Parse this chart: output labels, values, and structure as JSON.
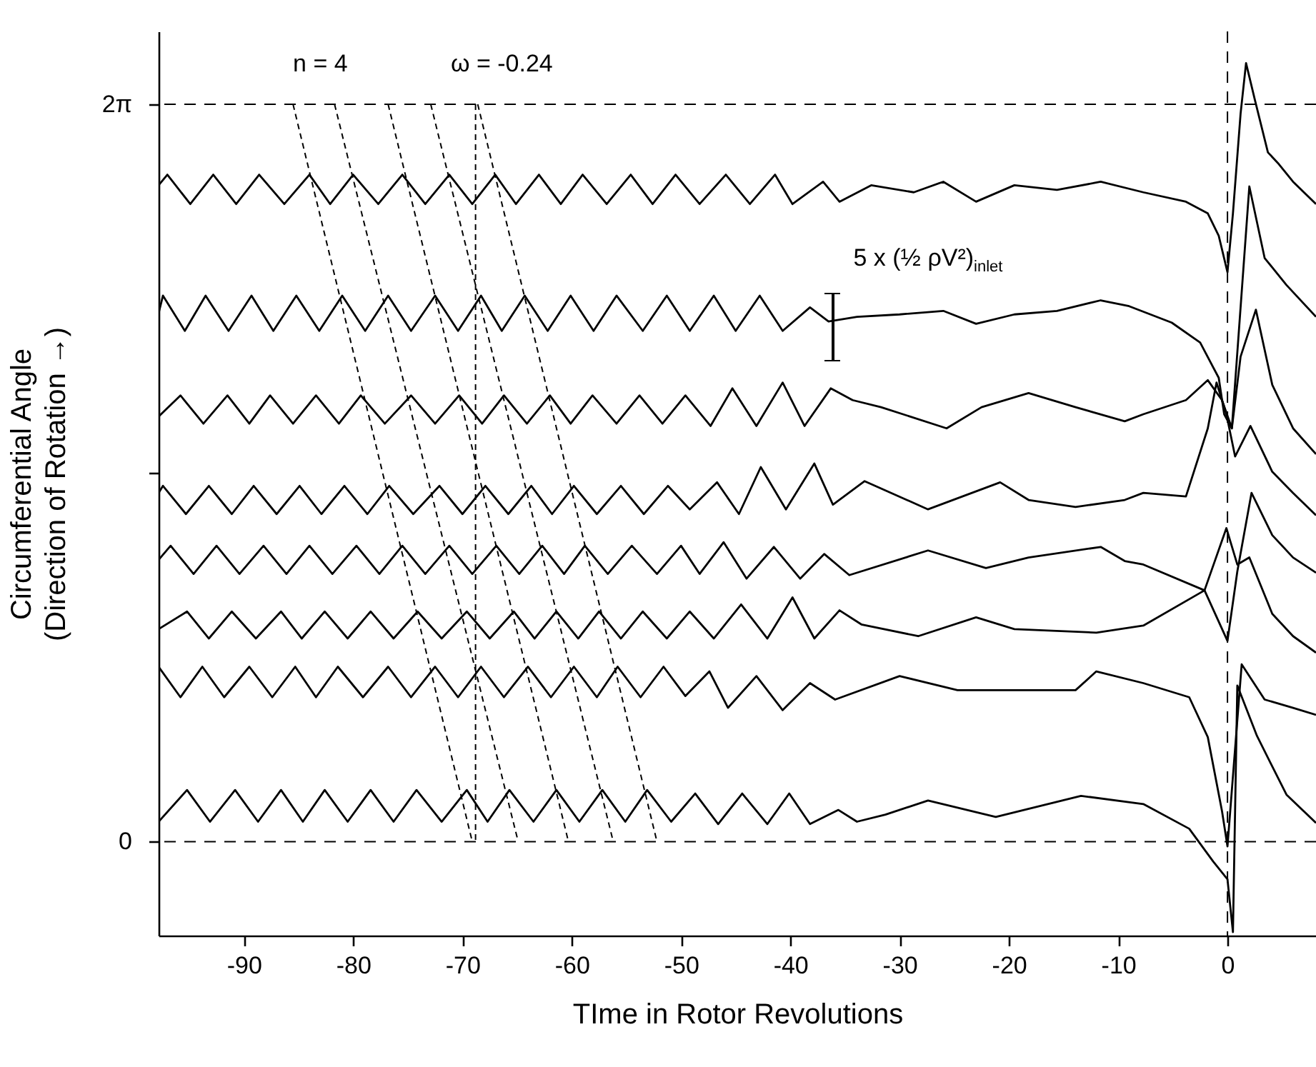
{
  "chart_data": {
    "type": "line",
    "xlabel": "TIme in Rotor Revolutions",
    "ylabel": "Circumferential Angle\n(Direction of Rotation →)",
    "xlim": [
      -97.8,
      8.1
    ],
    "ylim": [
      -0.8,
      6.9
    ],
    "xticks": [
      -90,
      -80,
      -70,
      -60,
      -50,
      -40,
      -30,
      -20,
      -10,
      0
    ],
    "yticks": [
      {
        "value": 0,
        "label": "0"
      },
      {
        "value": 3.1416,
        "label": null
      },
      {
        "value": 6.28,
        "label": "2π"
      }
    ],
    "ref_lines": [
      {
        "axis": "y",
        "value": 0,
        "line_style": "dashed",
        "color": "#000000"
      },
      {
        "axis": "y",
        "value": 6.28,
        "line_style": "dashed",
        "color": "#000000"
      },
      {
        "axis": "x",
        "value": 0,
        "line_style": "dashed",
        "color": "#000000"
      }
    ],
    "annotations": [
      "n = 4",
      "ω = -0.24",
      "5 x (½ ρV²)$_{inlet}$"
    ],
    "series": [
      {
        "color": "#000000",
        "x": [
          -97.8,
          -97.0,
          -94.9,
          -92.8,
          -90.7,
          -88.6,
          -86.3,
          -84.0,
          -82.1,
          -80.0,
          -77.7,
          -75.5,
          -73.4,
          -71.2,
          -69.1,
          -67.0,
          -65.1,
          -63.0,
          -61.0,
          -59.0,
          -56.8,
          -54.6,
          -52.6,
          -50.5,
          -48.3,
          -45.9,
          -43.7,
          -41.4,
          -39.8,
          -37.0,
          -35.5,
          -32.6,
          -28.7,
          -26.0,
          -23.0,
          -19.5,
          -15.6,
          -11.6,
          -7.7,
          -3.8,
          -1.8,
          -0.8,
          0,
          0.5,
          1.2,
          1.7,
          2.5,
          3.7,
          4.7,
          6.0,
          8.1
        ],
        "values": [
          5.59,
          5.68,
          5.43,
          5.68,
          5.43,
          5.68,
          5.43,
          5.68,
          5.43,
          5.68,
          5.43,
          5.68,
          5.43,
          5.68,
          5.43,
          5.68,
          5.43,
          5.68,
          5.43,
          5.68,
          5.43,
          5.68,
          5.43,
          5.68,
          5.43,
          5.68,
          5.43,
          5.68,
          5.43,
          5.62,
          5.45,
          5.59,
          5.53,
          5.62,
          5.45,
          5.59,
          5.55,
          5.62,
          5.53,
          5.45,
          5.35,
          5.16,
          4.85,
          5.35,
          6.2,
          6.63,
          6.32,
          5.87,
          5.77,
          5.62,
          5.43
        ]
      },
      {
        "color": "#000000",
        "x": [
          -97.8,
          -97.4,
          -95.4,
          -93.5,
          -91.4,
          -89.3,
          -87.3,
          -85.2,
          -83.1,
          -81.0,
          -78.9,
          -76.8,
          -74.7,
          -72.5,
          -70.4,
          -68.3,
          -66.4,
          -64.3,
          -62.2,
          -60.1,
          -58.0,
          -55.9,
          -53.5,
          -51.3,
          -49.2,
          -47.0,
          -45.0,
          -42.8,
          -40.7,
          -38.2,
          -36.5,
          -33.9,
          -30.0,
          -26.0,
          -23.0,
          -19.5,
          -15.6,
          -11.6,
          -9.0,
          -5.1,
          -2.5,
          -0.8,
          -0.3,
          0.4,
          2.0,
          3.4,
          5.4,
          8.1
        ],
        "values": [
          4.5,
          4.65,
          4.35,
          4.65,
          4.35,
          4.65,
          4.35,
          4.65,
          4.35,
          4.65,
          4.35,
          4.65,
          4.35,
          4.65,
          4.35,
          4.65,
          4.35,
          4.65,
          4.35,
          4.65,
          4.35,
          4.65,
          4.35,
          4.65,
          4.35,
          4.65,
          4.35,
          4.65,
          4.35,
          4.55,
          4.43,
          4.47,
          4.49,
          4.52,
          4.41,
          4.49,
          4.52,
          4.61,
          4.56,
          4.42,
          4.25,
          3.95,
          3.64,
          3.52,
          5.58,
          4.97,
          4.74,
          4.47
        ]
      },
      {
        "color": "#000000",
        "x": [
          -97.8,
          -95.8,
          -93.7,
          -91.5,
          -89.5,
          -87.6,
          -85.5,
          -83.4,
          -81.3,
          -79.3,
          -77.1,
          -74.7,
          -72.5,
          -70.3,
          -68.2,
          -66.2,
          -64.1,
          -62.0,
          -60.1,
          -58.1,
          -55.9,
          -53.8,
          -51.7,
          -49.6,
          -47.3,
          -45.3,
          -43.1,
          -40.7,
          -38.7,
          -36.3,
          -34.3,
          -31.7,
          -25.7,
          -22.5,
          -18.2,
          -13.9,
          -9.4,
          -7.7,
          -3.8,
          -1.8,
          -0.5,
          0.4,
          1.2,
          2.6,
          4.1,
          6.0,
          8.1
        ],
        "values": [
          3.62,
          3.8,
          3.56,
          3.8,
          3.56,
          3.8,
          3.56,
          3.8,
          3.56,
          3.8,
          3.56,
          3.8,
          3.56,
          3.8,
          3.56,
          3.8,
          3.56,
          3.8,
          3.56,
          3.8,
          3.56,
          3.8,
          3.56,
          3.8,
          3.54,
          3.86,
          3.54,
          3.91,
          3.54,
          3.86,
          3.76,
          3.7,
          3.52,
          3.7,
          3.82,
          3.7,
          3.58,
          3.64,
          3.76,
          3.93,
          3.76,
          3.52,
          4.13,
          4.53,
          3.89,
          3.52,
          3.3
        ]
      },
      {
        "color": "#000000",
        "x": [
          -97.8,
          -97.4,
          -95.3,
          -93.2,
          -91.1,
          -89.1,
          -87.0,
          -84.9,
          -82.9,
          -80.8,
          -78.7,
          -76.7,
          -74.5,
          -72.1,
          -70.0,
          -67.9,
          -65.8,
          -63.7,
          -61.8,
          -59.8,
          -57.7,
          -55.5,
          -53.4,
          -51.2,
          -49.2,
          -46.7,
          -44.7,
          -42.7,
          -40.4,
          -37.8,
          -36.1,
          -33.2,
          -27.4,
          -20.8,
          -18.2,
          -13.9,
          -9.4,
          -7.7,
          -3.8,
          -1.8,
          -1.0,
          -0.1,
          0.7,
          2.1,
          4.1,
          6.0,
          8.1
        ],
        "values": [
          2.97,
          3.03,
          2.79,
          3.03,
          2.79,
          3.03,
          2.79,
          3.03,
          2.79,
          3.03,
          2.79,
          3.03,
          2.79,
          3.03,
          2.79,
          3.03,
          2.79,
          3.03,
          2.79,
          3.03,
          2.79,
          3.03,
          2.79,
          3.03,
          2.83,
          3.06,
          2.79,
          3.19,
          2.83,
          3.22,
          2.87,
          3.07,
          2.83,
          3.06,
          2.91,
          2.85,
          2.91,
          2.97,
          2.94,
          3.52,
          3.91,
          3.64,
          3.28,
          3.54,
          3.15,
          2.97,
          2.78
        ]
      },
      {
        "color": "#000000",
        "x": [
          -97.8,
          -96.7,
          -94.6,
          -92.5,
          -90.4,
          -88.2,
          -86.1,
          -84.0,
          -81.9,
          -79.7,
          -77.6,
          -75.5,
          -73.4,
          -71.2,
          -69.1,
          -66.9,
          -64.8,
          -62.7,
          -60.7,
          -58.8,
          -56.7,
          -54.5,
          -52.2,
          -50.0,
          -48.3,
          -46.1,
          -44.0,
          -41.5,
          -39.1,
          -36.9,
          -34.6,
          -27.4,
          -22.1,
          -18.2,
          -11.6,
          -9.4,
          -7.7,
          -2.1,
          0,
          0.9,
          2.2,
          4.1,
          6.0,
          8.1
        ],
        "values": [
          2.4,
          2.52,
          2.28,
          2.52,
          2.28,
          2.52,
          2.28,
          2.52,
          2.28,
          2.52,
          2.28,
          2.52,
          2.28,
          2.52,
          2.28,
          2.52,
          2.28,
          2.52,
          2.28,
          2.52,
          2.28,
          2.52,
          2.28,
          2.52,
          2.28,
          2.55,
          2.24,
          2.51,
          2.24,
          2.45,
          2.27,
          2.48,
          2.33,
          2.42,
          2.51,
          2.39,
          2.36,
          2.14,
          1.71,
          2.3,
          2.97,
          2.61,
          2.42,
          2.29
        ]
      },
      {
        "color": "#000000",
        "x": [
          -97.8,
          -95.2,
          -93.2,
          -91.1,
          -88.9,
          -86.6,
          -84.7,
          -82.6,
          -80.5,
          -78.4,
          -76.3,
          -74.1,
          -71.9,
          -69.6,
          -67.5,
          -65.3,
          -63.4,
          -61.4,
          -59.4,
          -57.5,
          -55.5,
          -53.5,
          -51.3,
          -49.2,
          -47.0,
          -44.5,
          -42.1,
          -39.8,
          -37.8,
          -35.5,
          -33.5,
          -28.3,
          -23.0,
          -19.5,
          -12.0,
          -7.7,
          -2.1,
          -0.1,
          0.9,
          2.0,
          4.1,
          6.0,
          8.1
        ],
        "values": [
          1.81,
          1.96,
          1.73,
          1.96,
          1.73,
          1.96,
          1.73,
          1.96,
          1.73,
          1.96,
          1.73,
          1.96,
          1.73,
          1.96,
          1.73,
          1.96,
          1.73,
          1.96,
          1.73,
          1.96,
          1.73,
          1.96,
          1.73,
          1.96,
          1.73,
          2.02,
          1.73,
          2.08,
          1.73,
          1.97,
          1.85,
          1.75,
          1.91,
          1.81,
          1.78,
          1.84,
          2.14,
          2.67,
          2.36,
          2.42,
          1.94,
          1.75,
          1.61
        ]
      },
      {
        "color": "#000000",
        "x": [
          -97.8,
          -95.8,
          -93.8,
          -91.8,
          -89.5,
          -87.4,
          -85.3,
          -83.4,
          -81.4,
          -79.1,
          -76.8,
          -74.7,
          -72.5,
          -70.4,
          -68.3,
          -66.2,
          -64.0,
          -61.9,
          -59.8,
          -57.7,
          -55.8,
          -53.7,
          -51.6,
          -49.6,
          -47.4,
          -45.7,
          -43.1,
          -40.7,
          -38.2,
          -35.9,
          -30.0,
          -24.7,
          -13.9,
          -12.0,
          -7.7,
          -3.5,
          -1.8,
          -0.5,
          0,
          1.3,
          3.4,
          6.0,
          8.1
        ],
        "values": [
          1.49,
          1.23,
          1.49,
          1.23,
          1.49,
          1.23,
          1.49,
          1.23,
          1.49,
          1.23,
          1.49,
          1.23,
          1.49,
          1.23,
          1.49,
          1.23,
          1.49,
          1.23,
          1.49,
          1.23,
          1.49,
          1.23,
          1.49,
          1.24,
          1.45,
          1.14,
          1.41,
          1.12,
          1.35,
          1.21,
          1.41,
          1.29,
          1.29,
          1.45,
          1.35,
          1.23,
          0.89,
          0.26,
          -0.04,
          1.51,
          1.21,
          1.14,
          1.08
        ]
      },
      {
        "color": "#000000",
        "x": [
          -97.8,
          -95.2,
          -93.1,
          -90.8,
          -88.7,
          -86.6,
          -84.6,
          -82.6,
          -80.5,
          -78.4,
          -76.3,
          -74.2,
          -71.9,
          -69.6,
          -67.7,
          -65.7,
          -63.5,
          -61.4,
          -59.3,
          -57.2,
          -55.1,
          -53.1,
          -50.9,
          -48.7,
          -46.6,
          -44.4,
          -42.1,
          -40.1,
          -38.2,
          -35.6,
          -33.9,
          -31.3,
          -27.4,
          -21.2,
          -13.4,
          -7.7,
          -3.5,
          -1.3,
          0,
          0.5,
          0.9,
          2.7,
          5.4,
          8.1
        ],
        "values": [
          0.17,
          0.44,
          0.17,
          0.44,
          0.17,
          0.44,
          0.17,
          0.44,
          0.17,
          0.44,
          0.17,
          0.44,
          0.17,
          0.44,
          0.17,
          0.44,
          0.17,
          0.44,
          0.17,
          0.44,
          0.17,
          0.44,
          0.17,
          0.41,
          0.15,
          0.41,
          0.15,
          0.41,
          0.15,
          0.27,
          0.17,
          0.23,
          0.35,
          0.21,
          0.39,
          0.32,
          0.11,
          -0.17,
          -0.32,
          -0.77,
          1.33,
          0.9,
          0.4,
          0.16
        ]
      },
      {
        "color": "#000000",
        "line_style": "dashed",
        "x": [
          -85.5,
          -69.1
        ],
        "values": [
          6.28,
          0
        ]
      },
      {
        "color": "#000000",
        "line_style": "dashed",
        "x": [
          -81.7,
          -64.9
        ],
        "values": [
          6.28,
          0
        ]
      },
      {
        "color": "#000000",
        "line_style": "dashed",
        "x": [
          -76.8,
          -60.3
        ],
        "values": [
          6.28,
          0
        ]
      },
      {
        "color": "#000000",
        "line_style": "dashed",
        "x": [
          -72.9,
          -56.2
        ],
        "values": [
          6.28,
          0
        ]
      },
      {
        "color": "#000000",
        "line_style": "dashed",
        "x": [
          -68.6,
          -52.2
        ],
        "values": [
          6.28,
          0
        ]
      },
      {
        "color": "#000000",
        "line_style": "dashed",
        "x": [
          -68.8,
          -68.8
        ],
        "values": [
          6.28,
          0
        ]
      }
    ]
  }
}
